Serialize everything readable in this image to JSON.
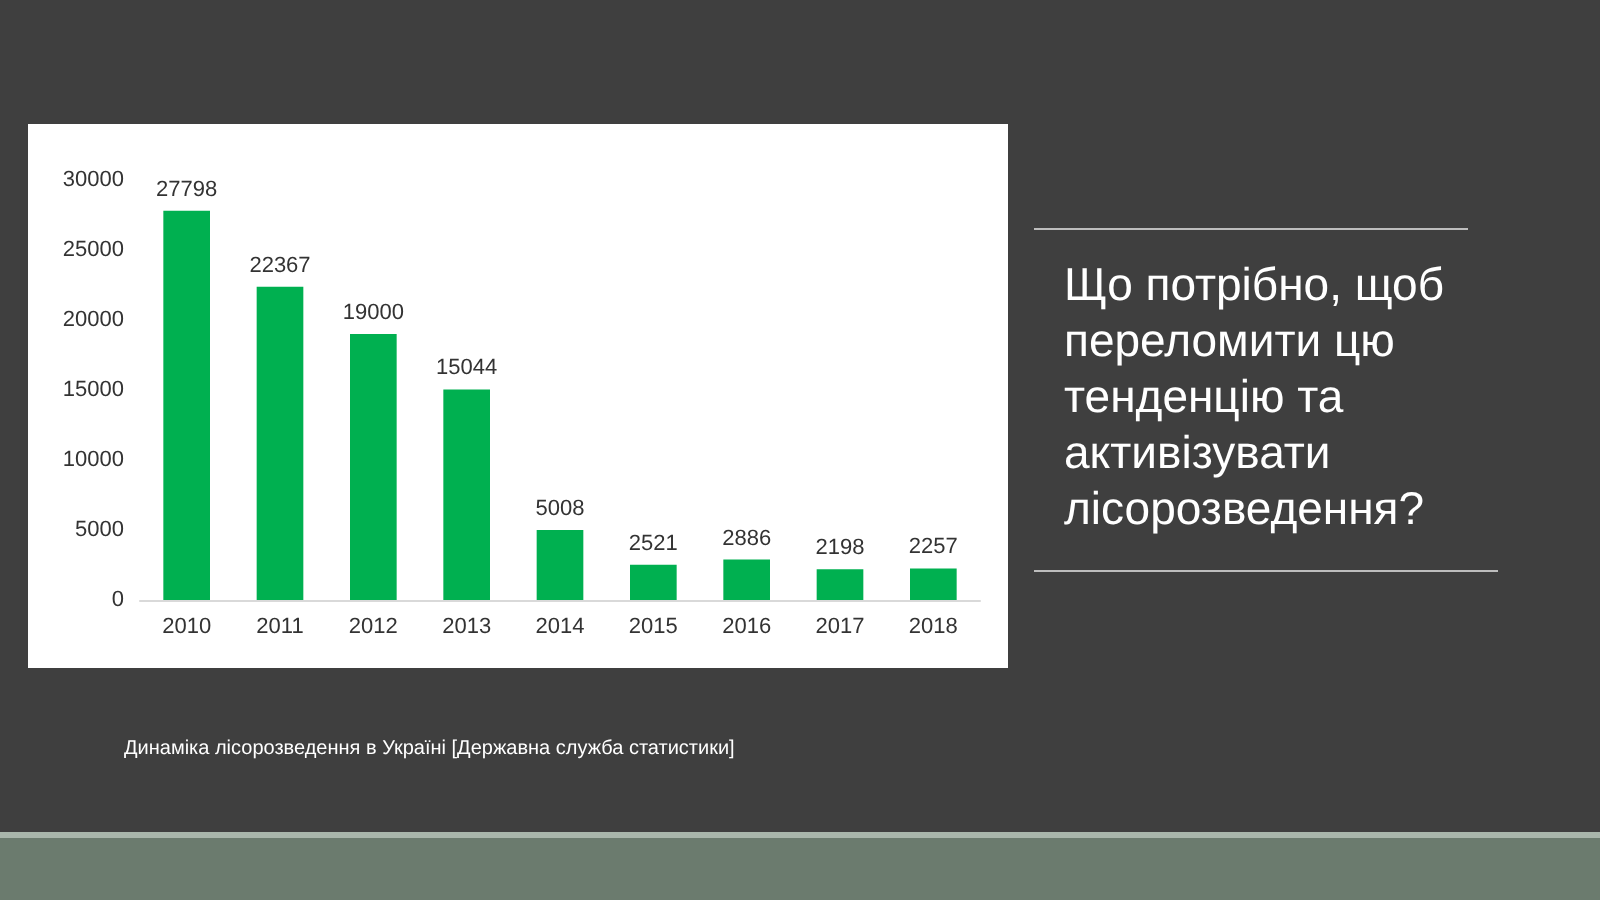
{
  "chart_data": {
    "type": "bar",
    "categories": [
      "2010",
      "2011",
      "2012",
      "2013",
      "2014",
      "2015",
      "2016",
      "2017",
      "2018"
    ],
    "values": [
      27798,
      22367,
      19000,
      15044,
      5008,
      2521,
      2886,
      2198,
      2257
    ],
    "color": "#00b050",
    "ylim": [
      0,
      30000
    ],
    "yticks": [
      0,
      5000,
      10000,
      15000,
      20000,
      25000,
      30000
    ],
    "grid": false,
    "data_labels": true,
    "annotations": [
      "Що потрібно, щоб переломити цю тенденцію та активізувати лісорозведення?",
      "Динаміка лісорозведення в Україні [Державна служба статистики]"
    ]
  }
}
